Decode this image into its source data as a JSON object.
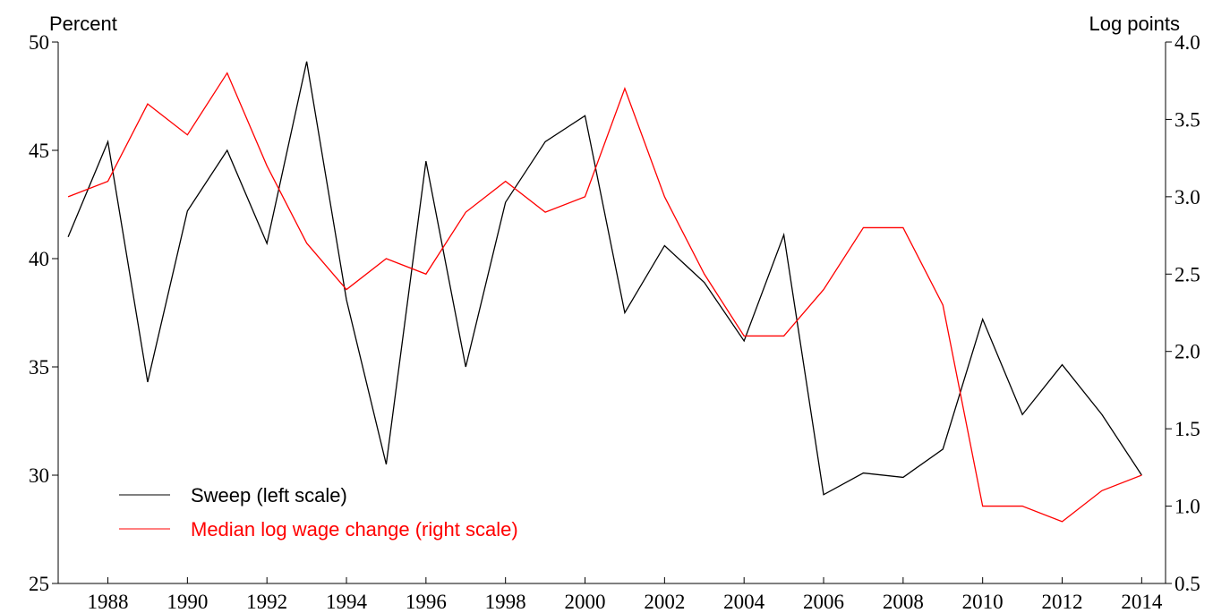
{
  "chart_data": {
    "type": "line",
    "y_label": "Percent",
    "y2_label": "Log points",
    "x": [
      1987,
      1988,
      1989,
      1990,
      1991,
      1992,
      1993,
      1994,
      1995,
      1996,
      1997,
      1998,
      1999,
      2000,
      2001,
      2002,
      2003,
      2004,
      2005,
      2006,
      2007,
      2008,
      2009,
      2010,
      2011,
      2012,
      2013,
      2014
    ],
    "xlim": [
      1986.75,
      2014.6
    ],
    "xticks": [
      1988,
      1990,
      1992,
      1994,
      1996,
      1998,
      2000,
      2002,
      2004,
      2006,
      2008,
      2010,
      2012,
      2014
    ],
    "ylim": [
      25,
      50
    ],
    "yticks": [
      25,
      30,
      35,
      40,
      45,
      50
    ],
    "y2lim": [
      0.5,
      4.0
    ],
    "y2ticks": [
      0.5,
      {
        "value": 1,
        "label": "1.0"
      },
      1.5,
      {
        "value": 2,
        "label": "2.0"
      },
      2.5,
      {
        "value": 3,
        "label": "3.0"
      },
      3.5,
      {
        "value": 4,
        "label": "4.0"
      }
    ],
    "grid": false,
    "legend": "lower left",
    "series": [
      {
        "name": "Sweep (left scale)",
        "color": "#000000",
        "axis": "y",
        "values": [
          41.0,
          45.4,
          34.3,
          42.2,
          45.0,
          40.7,
          49.1,
          38.1,
          30.5,
          44.5,
          35.0,
          42.6,
          45.4,
          46.6,
          37.5,
          40.6,
          38.9,
          36.2,
          41.1,
          29.1,
          30.1,
          29.9,
          31.2,
          37.2,
          32.8,
          35.1,
          32.8,
          30.0
        ]
      },
      {
        "name": "Median log wage change (right scale)",
        "color": "#ff0000",
        "axis": "y2",
        "values": [
          3.0,
          3.1,
          3.6,
          3.4,
          3.8,
          3.2,
          2.7,
          2.4,
          2.6,
          2.5,
          2.9,
          3.1,
          2.9,
          3.0,
          3.7,
          3.0,
          2.5,
          2.1,
          2.1,
          2.4,
          2.8,
          2.8,
          2.3,
          1.0,
          1.0,
          0.9,
          1.1,
          1.2
        ]
      }
    ]
  }
}
